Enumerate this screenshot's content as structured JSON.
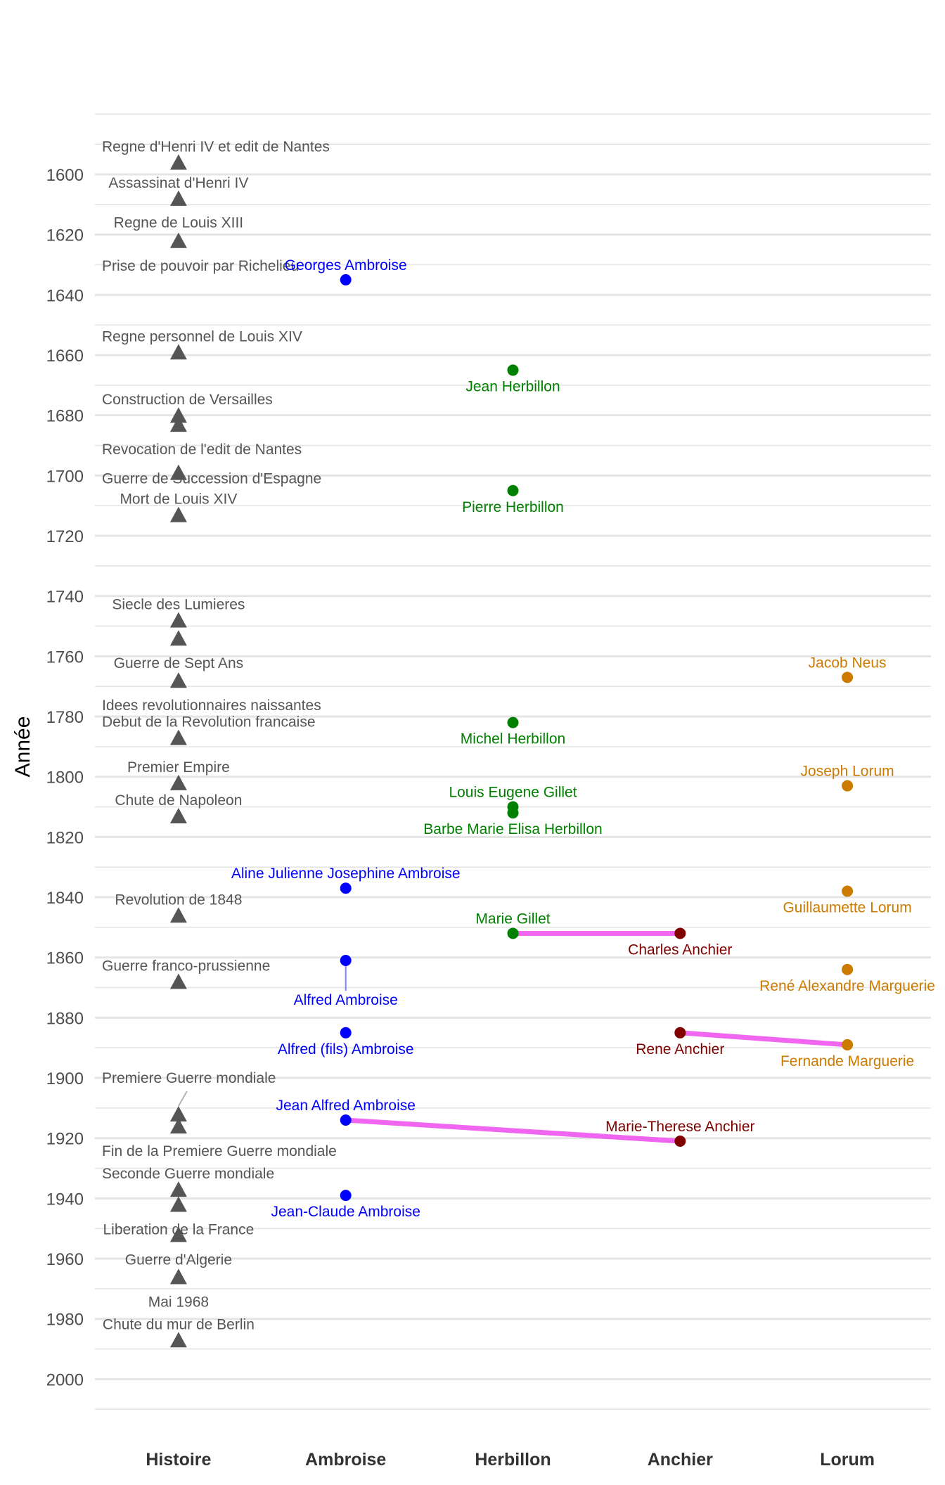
{
  "chart_data": {
    "type": "scatter",
    "title": "",
    "xlabel": "",
    "ylabel": "Année",
    "ylim": [
      1620,
      2000
    ],
    "y_reversed": true,
    "y_range": [
      1580,
      2010
    ],
    "yticks": [
      1600,
      1620,
      1640,
      1660,
      1680,
      1700,
      1720,
      1740,
      1760,
      1780,
      1800,
      1820,
      1840,
      1860,
      1880,
      1900,
      1920,
      1940,
      1960,
      1980,
      2000
    ],
    "grid": true,
    "categories": [
      "Histoire",
      "Ambroise",
      "Herbillon",
      "Anchier",
      "Lorum"
    ],
    "colors": {
      "Histoire": "#555555",
      "Ambroise": "#0000ff",
      "Herbillon": "#008000",
      "Anchier": "#800000",
      "Lorum": "#cc7a00",
      "link": "#ee55ee",
      "connector_ambroise": "#8080ff",
      "connector_histoire": "#b3b3b3"
    },
    "events": [
      {
        "label": "Regne d'Henri IV et edit de Nantes",
        "year": 1598,
        "pos": "above"
      },
      {
        "label": "Assassinat d'Henri IV",
        "year": 1610,
        "pos": "above"
      },
      {
        "label": "Regne de Louis XIII",
        "year": 1610,
        "pos": "label-only",
        "label_year": 1616
      },
      {
        "label": "Prise de pouvoir par Richelieu",
        "year": 1624,
        "pos": "below"
      },
      {
        "label": "Regne personnel de Louis XIV",
        "year": 1661,
        "pos": "above"
      },
      {
        "label": "Construction de Versailles",
        "year": 1682,
        "pos": "above"
      },
      {
        "label": "Revocation de l'edit de Nantes",
        "year": 1685,
        "pos": "below"
      },
      {
        "label": "Guerre de Succession d'Espagne",
        "year": 1701,
        "pos": "on"
      },
      {
        "label": "Mort de Louis XIV",
        "year": 1715,
        "pos": "above"
      },
      {
        "label": "Siecle des Lumieres",
        "year": 1750,
        "pos": "above"
      },
      {
        "label": "Guerre de Sept Ans",
        "year": 1756,
        "pos": "below"
      },
      {
        "label": "Idees revolutionnaires naissantes",
        "year": 1770,
        "pos": "below"
      },
      {
        "label": "Debut de la Revolution francaise",
        "year": 1789,
        "pos": "above"
      },
      {
        "label": "Premier Empire",
        "year": 1804,
        "pos": "above"
      },
      {
        "label": "Chute de Napoleon",
        "year": 1815,
        "pos": "above"
      },
      {
        "label": "Revolution de 1848",
        "year": 1848,
        "pos": "above"
      },
      {
        "label": "Guerre franco-prussienne",
        "year": 1870,
        "pos": "above"
      },
      {
        "label": "Premiere Guerre mondiale",
        "year": 1914,
        "pos": "far-above",
        "label_year": 1900
      },
      {
        "label": "Fin de la Premiere Guerre mondiale",
        "year": 1918,
        "pos": "below"
      },
      {
        "label": "Seconde Guerre mondiale",
        "year": 1939,
        "pos": "above"
      },
      {
        "label": "Liberation de la France",
        "year": 1944,
        "pos": "below"
      },
      {
        "label": "Guerre d'Algerie",
        "year": 1954,
        "pos": "below"
      },
      {
        "label": "Mai 1968",
        "year": 1968,
        "pos": "below"
      },
      {
        "label": "Chute du mur de Berlin",
        "year": 1989,
        "pos": "above"
      }
    ],
    "people": [
      {
        "name": "Georges Ambroise",
        "family": "Ambroise",
        "year": 1635,
        "pos": "above"
      },
      {
        "name": "Aline Julienne Josephine Ambroise",
        "family": "Ambroise",
        "year": 1837,
        "pos": "above"
      },
      {
        "name": "Alfred Ambroise",
        "family": "Ambroise",
        "year": 1861,
        "pos": "far-below",
        "label_year": 1872
      },
      {
        "name": "Alfred (fils) Ambroise",
        "family": "Ambroise",
        "year": 1885,
        "pos": "below"
      },
      {
        "name": "Jean Alfred Ambroise",
        "family": "Ambroise",
        "year": 1914,
        "pos": "above"
      },
      {
        "name": "Jean-Claude Ambroise",
        "family": "Ambroise",
        "year": 1939,
        "pos": "below"
      },
      {
        "name": "Jean Herbillon",
        "family": "Herbillon",
        "year": 1665,
        "pos": "below"
      },
      {
        "name": "Pierre Herbillon",
        "family": "Herbillon",
        "year": 1705,
        "pos": "below"
      },
      {
        "name": "Michel Herbillon",
        "family": "Herbillon",
        "year": 1782,
        "pos": "below"
      },
      {
        "name": "Louis Eugene Gillet",
        "family": "Herbillon",
        "year": 1810,
        "pos": "above"
      },
      {
        "name": "Barbe Marie Elisa Herbillon",
        "family": "Herbillon",
        "year": 1812,
        "pos": "below"
      },
      {
        "name": "Marie Gillet",
        "family": "Herbillon",
        "year": 1852,
        "pos": "above"
      },
      {
        "name": "Charles Anchier",
        "family": "Anchier",
        "year": 1852,
        "pos": "below"
      },
      {
        "name": "Rene Anchier",
        "family": "Anchier",
        "year": 1885,
        "pos": "below"
      },
      {
        "name": "Marie-Therese Anchier",
        "family": "Anchier",
        "year": 1921,
        "pos": "above"
      },
      {
        "name": "Jacob Neus",
        "family": "Lorum",
        "year": 1767,
        "pos": "above"
      },
      {
        "name": "Joseph Lorum",
        "family": "Lorum",
        "year": 1803,
        "pos": "above"
      },
      {
        "name": "Guillaumette Lorum",
        "family": "Lorum",
        "year": 1838,
        "pos": "below"
      },
      {
        "name": "René Alexandre Marguerie",
        "family": "Lorum",
        "year": 1864,
        "pos": "below"
      },
      {
        "name": "Fernande Marguerie",
        "family": "Lorum",
        "year": 1889,
        "pos": "below"
      }
    ],
    "links": [
      {
        "from": "Marie Gillet",
        "to": "Charles Anchier"
      },
      {
        "from": "Rene Anchier",
        "to": "Fernande Marguerie"
      },
      {
        "from": "Jean Alfred Ambroise",
        "to": "Marie-Therese Anchier"
      }
    ]
  }
}
